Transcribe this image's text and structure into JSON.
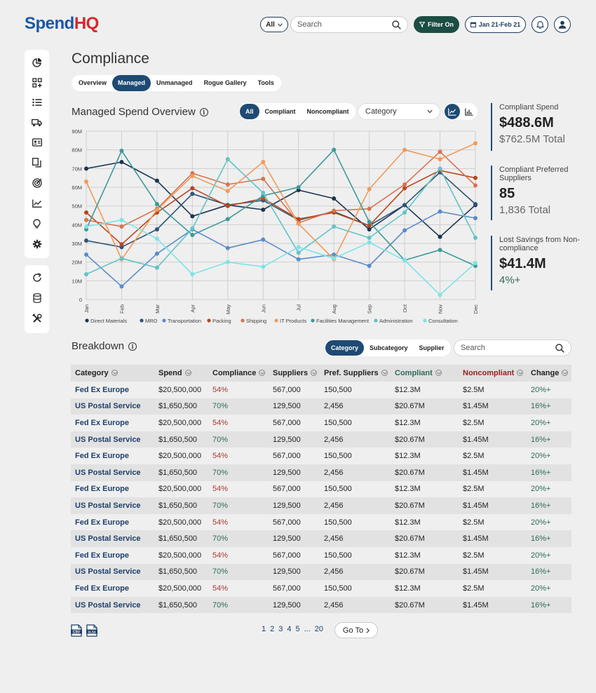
{
  "brand": {
    "part1": "Spend",
    "part2": "HQ",
    "color1": "#1b57a8",
    "color2": "#d8262c"
  },
  "header": {
    "scope": "All",
    "search_placeholder": "Search",
    "filter_label": "Filter On",
    "date_label": "Jan 21-Feb 21"
  },
  "sidebar": {
    "top_icons": [
      "pie-chart-icon",
      "grid-add-icon",
      "list-icon",
      "truck-icon",
      "contact-card-icon",
      "documents-icon",
      "target-icon",
      "line-chart-icon",
      "lightbulb-icon",
      "gear-icon"
    ],
    "bottom_icons": [
      "refresh-icon",
      "database-icon",
      "tools-icon"
    ]
  },
  "page": {
    "title": "Compliance",
    "tabs": [
      "Overview",
      "Managed",
      "Unmanaged",
      "Rogue Gallery",
      "Tools"
    ],
    "active_tab": 1
  },
  "overview": {
    "title": "Managed Spend Overview",
    "filters": [
      "All",
      "Compliant",
      "Noncompliant"
    ],
    "active_filter": 0,
    "dropdown_value": "Category"
  },
  "kpis": [
    {
      "label": "Compliant Spend",
      "value": "$488.6M",
      "sub": "$762.5M Total"
    },
    {
      "label": "Compliant Preferred Suppliers",
      "value": "85",
      "sub": "1,836 Total"
    },
    {
      "label": "Lost Savings from Non-compliance",
      "value": "$41.4M",
      "sub": "4%+"
    }
  ],
  "chart_data": {
    "type": "line",
    "title": "Managed Spend Overview",
    "xlabel": "",
    "ylabel": "",
    "ylim": [
      0,
      90
    ],
    "y_ticks": [
      "0",
      "10M",
      "20M",
      "30M",
      "40M",
      "50M",
      "60M",
      "70M",
      "80M",
      "90M"
    ],
    "categories": [
      "Jan",
      "Feb",
      "Mar",
      "Apr",
      "May",
      "Jun",
      "Jul",
      "Aug",
      "Sep",
      "Oct",
      "Nov",
      "Dec"
    ],
    "series": [
      {
        "name": "Direct Materials",
        "color": "#1b3452",
        "values": [
          70,
          73.5,
          63.5,
          44.5,
          50.5,
          48,
          58.5,
          54,
          37.5,
          50.5,
          33.5,
          50.5
        ]
      },
      {
        "name": "MRO",
        "color": "#2f5478",
        "values": [
          31.5,
          28,
          37.5,
          56.5,
          50.5,
          53,
          42.5,
          47,
          39.5,
          50.5,
          68,
          51
        ]
      },
      {
        "name": "Transportation",
        "color": "#5a8ccb",
        "values": [
          24,
          7,
          24.5,
          37.5,
          27.5,
          32,
          21.5,
          24,
          18,
          37,
          47,
          43.5
        ]
      },
      {
        "name": "Packing",
        "color": "#b8461e",
        "values": [
          46.5,
          29.5,
          46.5,
          59.5,
          50,
          54,
          43,
          46.5,
          39.5,
          59.5,
          69,
          65
        ]
      },
      {
        "name": "Shipping",
        "color": "#d7734f",
        "values": [
          42.5,
          39,
          48.5,
          67.5,
          61.5,
          64.5,
          41,
          47.5,
          48.5,
          61.5,
          79,
          61
        ]
      },
      {
        "name": "IT Products",
        "color": "#f19a59",
        "values": [
          63,
          21.5,
          48,
          66,
          58,
          73.5,
          40.5,
          21.5,
          59,
          80,
          75,
          83.5
        ]
      },
      {
        "name": "Facilities Management",
        "color": "#3c9b9a",
        "values": [
          37.5,
          79.5,
          51,
          34.5,
          43,
          55.5,
          60,
          80,
          41.5,
          21,
          26.5,
          18
        ]
      },
      {
        "name": "Administration",
        "color": "#62c3c7",
        "values": [
          13.5,
          22,
          17,
          38,
          75,
          57,
          25,
          39,
          33,
          46.5,
          70,
          33
        ]
      },
      {
        "name": "Consultation",
        "color": "#7ce3e8",
        "values": [
          39,
          42.5,
          32.5,
          13.5,
          20,
          17.5,
          28,
          22,
          30.5,
          21,
          2.5,
          19.5
        ]
      }
    ]
  },
  "breakdown": {
    "title": "Breakdown",
    "filters": [
      "Category",
      "Subcategory",
      "Supplier"
    ],
    "active_filter": 0,
    "search_placeholder": "Search",
    "columns": [
      "Category",
      "Spend",
      "Compliance",
      "Suppliers",
      "Pref. Suppliers",
      "Compliant",
      "Noncompliant",
      "Change"
    ],
    "rows": [
      [
        "Fed Ex Europe",
        "$20,500,000",
        "54%",
        "567,000",
        "150,500",
        "$12.3M",
        "$2.5M",
        "20%+"
      ],
      [
        "US Postal Service",
        "$1,650,500",
        "70%",
        "129,500",
        "2,456",
        "$20.67M",
        "$1.45M",
        "16%+"
      ],
      [
        "Fed Ex Europe",
        "$20,500,000",
        "54%",
        "567,000",
        "150,500",
        "$12.3M",
        "$2.5M",
        "20%+"
      ],
      [
        "US Postal Service",
        "$1,650,500",
        "70%",
        "129,500",
        "2,456",
        "$20.67M",
        "$1.45M",
        "16%+"
      ],
      [
        "Fed Ex Europe",
        "$20,500,000",
        "54%",
        "567,000",
        "150,500",
        "$12.3M",
        "$2.5M",
        "20%+"
      ],
      [
        "US Postal Service",
        "$1,650,500",
        "70%",
        "129,500",
        "2,456",
        "$20.67M",
        "$1.45M",
        "16%+"
      ],
      [
        "Fed Ex Europe",
        "$20,500,000",
        "54%",
        "567,000",
        "150,500",
        "$12.3M",
        "$2.5M",
        "20%+"
      ],
      [
        "US Postal Service",
        "$1,650,500",
        "70%",
        "129,500",
        "2,456",
        "$20.67M",
        "$1.45M",
        "16%+"
      ],
      [
        "Fed Ex Europe",
        "$20,500,000",
        "54%",
        "567,000",
        "150,500",
        "$12.3M",
        "$2.5M",
        "20%+"
      ],
      [
        "US Postal Service",
        "$1,650,500",
        "70%",
        "129,500",
        "2,456",
        "$20.67M",
        "$1.45M",
        "16%+"
      ],
      [
        "Fed Ex Europe",
        "$20,500,000",
        "54%",
        "567,000",
        "150,500",
        "$12.3M",
        "$2.5M",
        "20%+"
      ],
      [
        "US Postal Service",
        "$1,650,500",
        "70%",
        "129,500",
        "2,456",
        "$20.67M",
        "$1.45M",
        "16%+"
      ],
      [
        "Fed Ex Europe",
        "$20,500,000",
        "54%",
        "567,000",
        "150,500",
        "$12.3M",
        "$2.5M",
        "20%+"
      ],
      [
        "US Postal Service",
        "$1,650,500",
        "70%",
        "129,500",
        "2,456",
        "$20.67M",
        "$1.45M",
        "16%+"
      ]
    ]
  },
  "export": {
    "csv": "CSV",
    "xlsx": "XLSX"
  },
  "pagination": {
    "pages": [
      "1",
      "2",
      "3",
      "4",
      "5",
      "...",
      "20"
    ],
    "goto_label": "Go To"
  }
}
